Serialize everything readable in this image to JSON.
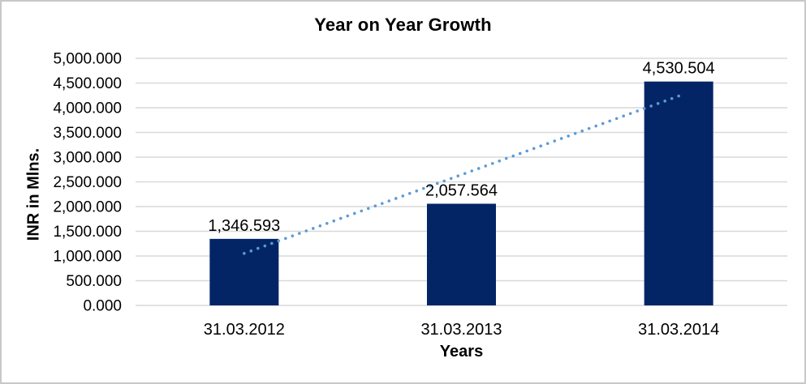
{
  "chart_data": {
    "type": "bar",
    "title": "Year on Year Growth",
    "xlabel": "Years",
    "ylabel": "INR in Mlns.",
    "categories": [
      "31.03.2012",
      "31.03.2013",
      "31.03.2014"
    ],
    "values": [
      1346.593,
      2057.564,
      4530.504
    ],
    "data_labels": [
      "1,346.593",
      "2,057.564",
      "4,530.504"
    ],
    "ylim": [
      0,
      5000
    ],
    "y_tick_step": 500,
    "y_ticks": {
      "values": [
        0,
        500,
        1000,
        1500,
        2000,
        2500,
        3000,
        3500,
        4000,
        4500,
        5000
      ],
      "labels": [
        "0.000",
        "500.000",
        "1,000.000",
        "1,500.000",
        "2,000.000",
        "2,500.000",
        "3,000.000",
        "3,500.000",
        "4,000.000",
        "4,500.000",
        "5,000.000"
      ]
    },
    "grid": true,
    "legend": "none",
    "trendline": {
      "type": "linear",
      "style": "dotted",
      "color": "#5B9BD5",
      "endpoint_values": [
        1052.93,
        4236.84
      ]
    },
    "colors": {
      "bar": "#032566",
      "gridline": "#D9D9D9",
      "text": "#000000",
      "background": "#FFFFFF",
      "border": "#C8C8C8"
    }
  }
}
